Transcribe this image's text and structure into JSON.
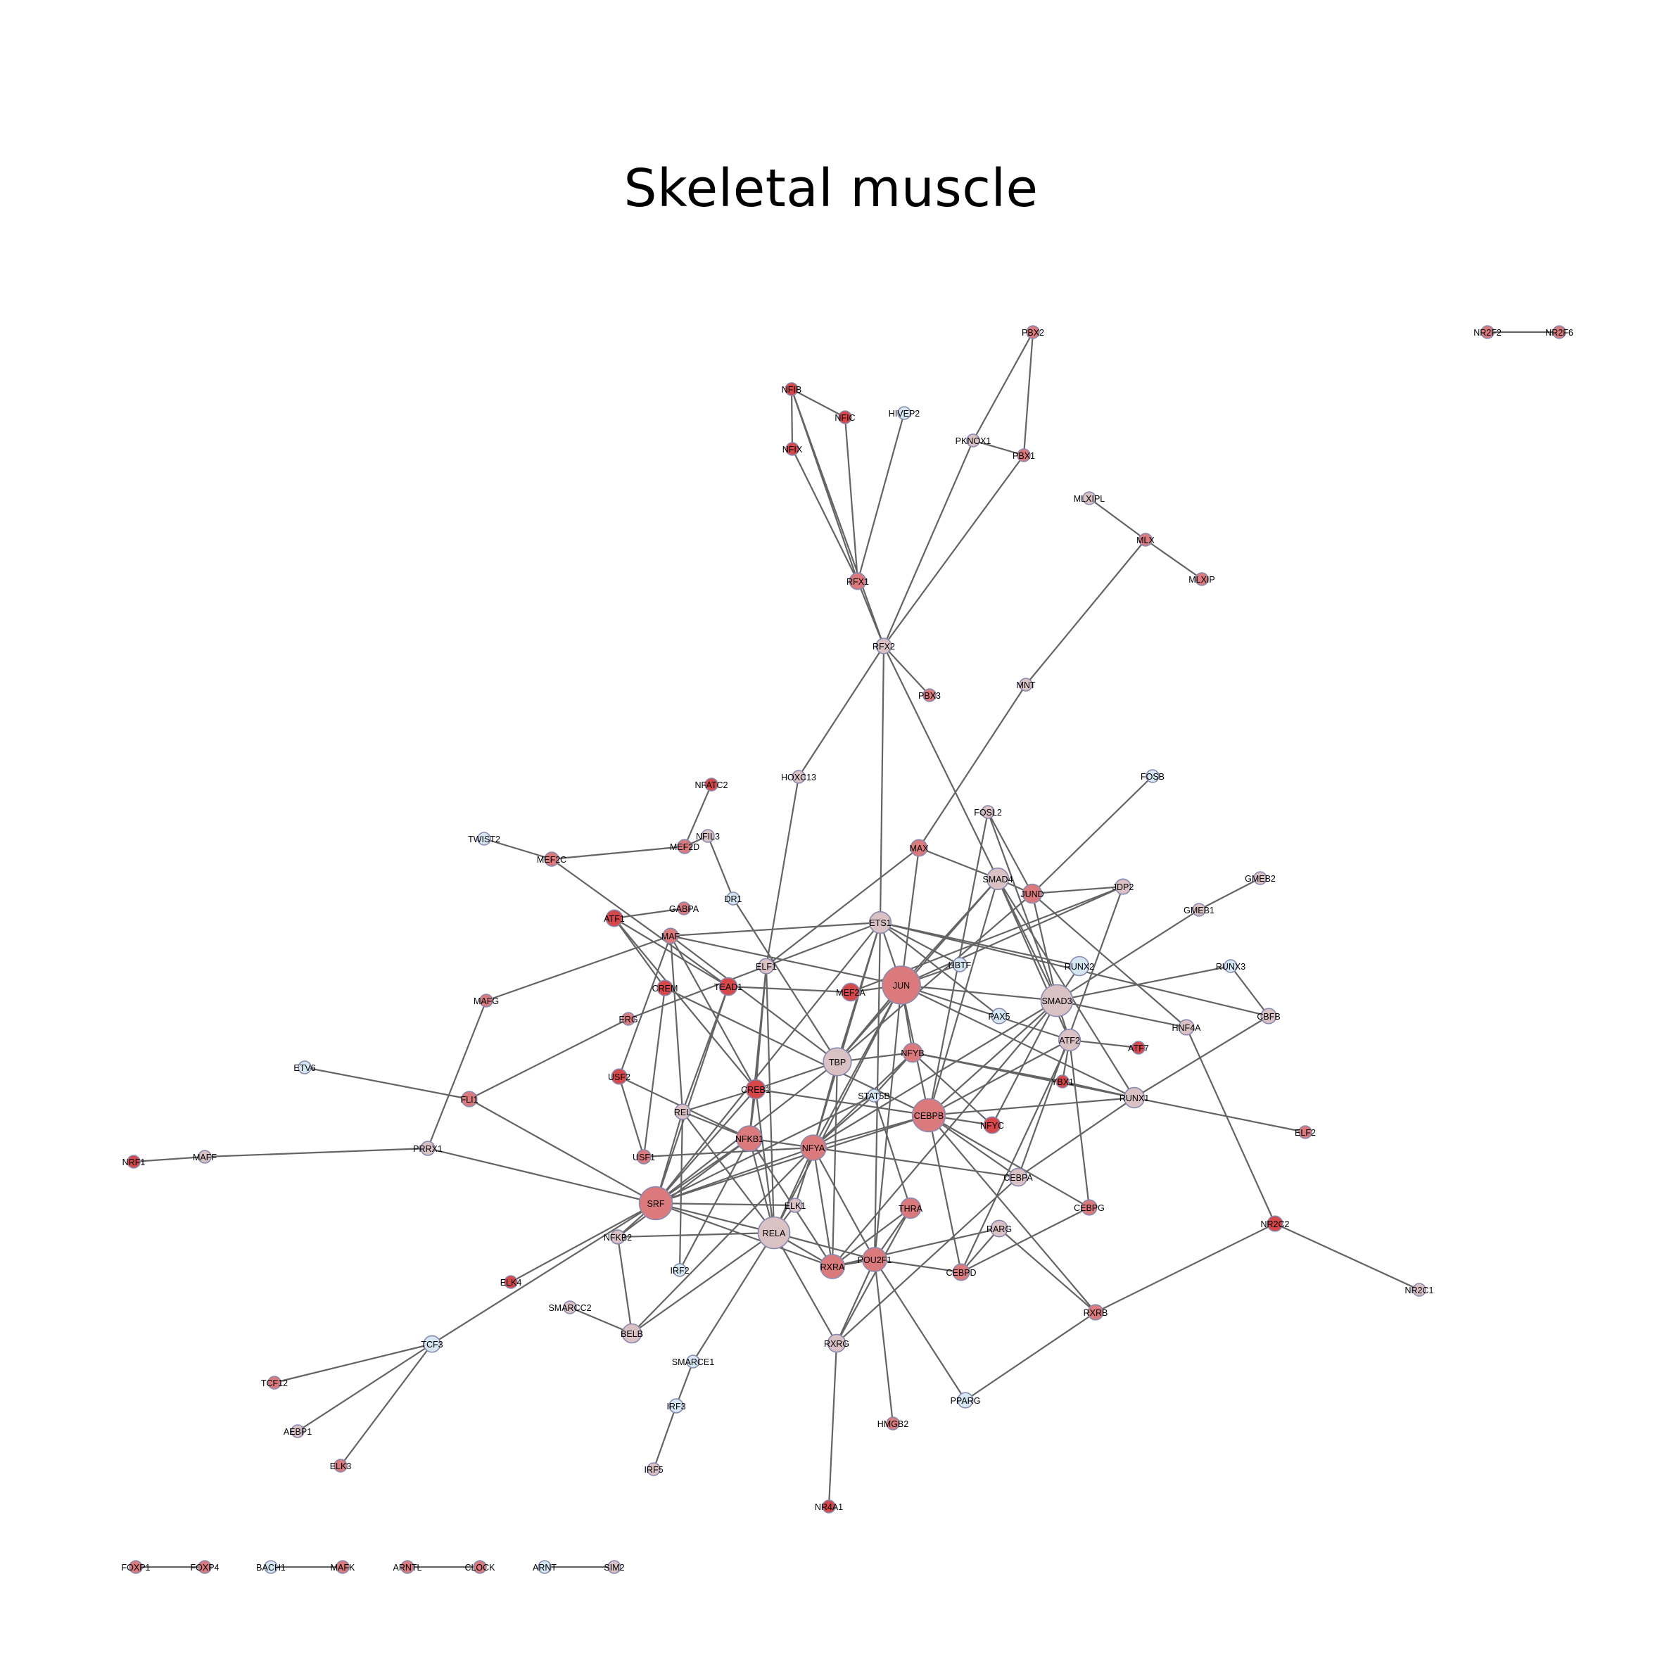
{
  "title": "Skeletal muscle",
  "colors": {
    "edge": "#646464",
    "node_high": "#d6474a",
    "node_mid": "#db7a7d",
    "node_pinkgray": "#d9c1c4",
    "node_light": "#d4e7f2"
  },
  "nodes": [
    {
      "id": "NFIB",
      "c": "high",
      "s": 1
    },
    {
      "id": "NFIC",
      "c": "high",
      "s": 1
    },
    {
      "id": "NFIX",
      "c": "high",
      "s": 1
    },
    {
      "id": "HIVEP2",
      "c": "light",
      "s": 1
    },
    {
      "id": "PBX2",
      "c": "mid",
      "s": 1
    },
    {
      "id": "PKNOX1",
      "c": "pinkgray",
      "s": 1
    },
    {
      "id": "PBX1",
      "c": "mid",
      "s": 1
    },
    {
      "id": "NR2F2",
      "c": "mid",
      "s": 1
    },
    {
      "id": "NR2F6",
      "c": "mid",
      "s": 1
    },
    {
      "id": "MLXIPL",
      "c": "pinkgray",
      "s": 1
    },
    {
      "id": "MLX",
      "c": "mid",
      "s": 1
    },
    {
      "id": "MLXIP",
      "c": "mid",
      "s": 1
    },
    {
      "id": "RFX1",
      "c": "mid",
      "s": 1.3
    },
    {
      "id": "RFX2",
      "c": "pinkgray",
      "s": 1.2
    },
    {
      "id": "PBX3",
      "c": "mid",
      "s": 1
    },
    {
      "id": "MNT",
      "c": "pinkgray",
      "s": 1
    },
    {
      "id": "HOXC13",
      "c": "pinkgray",
      "s": 1
    },
    {
      "id": "FOSB",
      "c": "light",
      "s": 1
    },
    {
      "id": "NFATC2",
      "c": "high",
      "s": 1
    },
    {
      "id": "FOSL2",
      "c": "pinkgray",
      "s": 1
    },
    {
      "id": "TWIST2",
      "c": "light",
      "s": 1
    },
    {
      "id": "MEF2C",
      "c": "mid",
      "s": 1.1
    },
    {
      "id": "MEF2D",
      "c": "mid",
      "s": 1.1
    },
    {
      "id": "NFIL3",
      "c": "pinkgray",
      "s": 1
    },
    {
      "id": "MAX",
      "c": "mid",
      "s": 1.3
    },
    {
      "id": "SMAD4",
      "c": "pinkgray",
      "s": 1.7
    },
    {
      "id": "JUND",
      "c": "mid",
      "s": 1.5
    },
    {
      "id": "JDP2",
      "c": "pinkgray",
      "s": 1.2
    },
    {
      "id": "GMEB2",
      "c": "pinkgray",
      "s": 1
    },
    {
      "id": "DR1",
      "c": "light",
      "s": 1
    },
    {
      "id": "ATF1",
      "c": "high",
      "s": 1.3
    },
    {
      "id": "GABPA",
      "c": "mid",
      "s": 1
    },
    {
      "id": "GMEB1",
      "c": "pinkgray",
      "s": 1
    },
    {
      "id": "ETS1",
      "c": "pinkgray",
      "s": 1.7
    },
    {
      "id": "MAF",
      "c": "mid",
      "s": 1.2
    },
    {
      "id": "ELF1",
      "c": "pinkgray",
      "s": 1.2
    },
    {
      "id": "HBTF",
      "c": "light",
      "s": 1.1
    },
    {
      "id": "RUNX2",
      "c": "light",
      "s": 1.5
    },
    {
      "id": "RUNX3",
      "c": "light",
      "s": 1
    },
    {
      "id": "CREM",
      "c": "high",
      "s": 1.2
    },
    {
      "id": "TEAD1",
      "c": "high",
      "s": 1.4
    },
    {
      "id": "MEF2A",
      "c": "high",
      "s": 1.4
    },
    {
      "id": "JUN",
      "c": "mid",
      "s": 3
    },
    {
      "id": "SMAD3",
      "c": "pinkgray",
      "s": 2.5
    },
    {
      "id": "MAFG",
      "c": "mid",
      "s": 1
    },
    {
      "id": "ERG",
      "c": "mid",
      "s": 1
    },
    {
      "id": "PAX5",
      "c": "light",
      "s": 1.2
    },
    {
      "id": "HNF4A",
      "c": "pinkgray",
      "s": 1.2
    },
    {
      "id": "CBFB",
      "c": "pinkgray",
      "s": 1.2
    },
    {
      "id": "ATF2",
      "c": "pinkgray",
      "s": 1.7
    },
    {
      "id": "ATF7",
      "c": "high",
      "s": 1
    },
    {
      "id": "TBP",
      "c": "pinkgray",
      "s": 2.2
    },
    {
      "id": "NFYB",
      "c": "mid",
      "s": 1.5
    },
    {
      "id": "YBX1",
      "c": "high",
      "s": 1
    },
    {
      "id": "ETV6",
      "c": "light",
      "s": 1
    },
    {
      "id": "FLI1",
      "c": "mid",
      "s": 1.2
    },
    {
      "id": "USF2",
      "c": "high",
      "s": 1.2
    },
    {
      "id": "CREB1",
      "c": "high",
      "s": 1.5
    },
    {
      "id": "STAT5B",
      "c": "light",
      "s": 1
    },
    {
      "id": "RUNX1",
      "c": "pinkgray",
      "s": 1.6
    },
    {
      "id": "CEBPB",
      "c": "mid",
      "s": 2.6
    },
    {
      "id": "REL",
      "c": "pinkgray",
      "s": 1.2
    },
    {
      "id": "NFYC",
      "c": "high",
      "s": 1.3
    },
    {
      "id": "ELF2",
      "c": "mid",
      "s": 1
    },
    {
      "id": "NFKB1",
      "c": "mid",
      "s": 2
    },
    {
      "id": "NFYA",
      "c": "mid",
      "s": 2
    },
    {
      "id": "NRF1",
      "c": "high",
      "s": 1
    },
    {
      "id": "MAFF",
      "c": "pinkgray",
      "s": 1
    },
    {
      "id": "PRRX1",
      "c": "pinkgray",
      "s": 1.1
    },
    {
      "id": "USF1",
      "c": "mid",
      "s": 1.1
    },
    {
      "id": "CEBPA",
      "c": "pinkgray",
      "s": 1.4
    },
    {
      "id": "SRF",
      "c": "mid",
      "s": 2.6
    },
    {
      "id": "ELK1",
      "c": "pinkgray",
      "s": 1.1
    },
    {
      "id": "THRA",
      "c": "mid",
      "s": 1.6
    },
    {
      "id": "CEBPG",
      "c": "mid",
      "s": 1.2
    },
    {
      "id": "NR2C2",
      "c": "high",
      "s": 1.2
    },
    {
      "id": "RARG",
      "c": "pinkgray",
      "s": 1.3
    },
    {
      "id": "NFKB2",
      "c": "pinkgray",
      "s": 1.1
    },
    {
      "id": "RELA",
      "c": "pinkgray",
      "s": 2.5
    },
    {
      "id": "RXRA",
      "c": "mid",
      "s": 1.9
    },
    {
      "id": "POU2F1",
      "c": "mid",
      "s": 1.9
    },
    {
      "id": "IRF2",
      "c": "light",
      "s": 1
    },
    {
      "id": "CEBPD",
      "c": "mid",
      "s": 1.3
    },
    {
      "id": "ELK4",
      "c": "high",
      "s": 1
    },
    {
      "id": "NR2C1",
      "c": "pinkgray",
      "s": 1
    },
    {
      "id": "SMARCC2",
      "c": "pinkgray",
      "s": 1
    },
    {
      "id": "RXRB",
      "c": "mid",
      "s": 1.2
    },
    {
      "id": "BELB",
      "c": "pinkgray",
      "s": 1.5
    },
    {
      "id": "RXRG",
      "c": "pinkgray",
      "s": 1.4
    },
    {
      "id": "TCF3",
      "c": "light",
      "s": 1.3
    },
    {
      "id": "SMARCE1",
      "c": "light",
      "s": 1
    },
    {
      "id": "TCF12",
      "c": "mid",
      "s": 1
    },
    {
      "id": "IRF3",
      "c": "light",
      "s": 1.1
    },
    {
      "id": "PPARG",
      "c": "light",
      "s": 1.2
    },
    {
      "id": "HMGB2",
      "c": "mid",
      "s": 1
    },
    {
      "id": "AEBP1",
      "c": "pinkgray",
      "s": 1
    },
    {
      "id": "ELK3",
      "c": "mid",
      "s": 1
    },
    {
      "id": "IRF5",
      "c": "pinkgray",
      "s": 1
    },
    {
      "id": "NR4A1",
      "c": "high",
      "s": 1
    },
    {
      "id": "FOXP1",
      "c": "mid",
      "s": 1
    },
    {
      "id": "FOXP4",
      "c": "mid",
      "s": 1
    },
    {
      "id": "BACH1",
      "c": "light",
      "s": 1
    },
    {
      "id": "MAFK",
      "c": "mid",
      "s": 1
    },
    {
      "id": "ARNTL",
      "c": "mid",
      "s": 1
    },
    {
      "id": "CLOCK",
      "c": "mid",
      "s": 1
    },
    {
      "id": "ARNT",
      "c": "light",
      "s": 1
    },
    {
      "id": "SIM2",
      "c": "pinkgray",
      "s": 1
    }
  ],
  "edges": [
    [
      "NFIB",
      "NFIC"
    ],
    [
      "NFIB",
      "NFIX"
    ],
    [
      "NFIB",
      "RFX1"
    ],
    [
      "NFIB",
      "RFX2"
    ],
    [
      "NFIX",
      "RFX1"
    ],
    [
      "NFIC",
      "RFX1"
    ],
    [
      "HIVEP2",
      "RFX1"
    ],
    [
      "PBX2",
      "PKNOX1"
    ],
    [
      "PBX2",
      "PBX1"
    ],
    [
      "PKNOX1",
      "PBX1"
    ],
    [
      "PKNOX1",
      "RFX2"
    ],
    [
      "PBX1",
      "RFX2"
    ],
    [
      "NR2F2",
      "NR2F6"
    ],
    [
      "MLXIPL",
      "MLX"
    ],
    [
      "MLX",
      "MLXIP"
    ],
    [
      "MLX",
      "MNT"
    ],
    [
      "MNT",
      "MAX"
    ],
    [
      "RFX1",
      "RFX2"
    ],
    [
      "RFX2",
      "PBX3"
    ],
    [
      "RFX2",
      "HOXC13"
    ],
    [
      "RFX2",
      "ETS1"
    ],
    [
      "RFX2",
      "SMAD4"
    ],
    [
      "HOXC13",
      "ELF1"
    ],
    [
      "FOSB",
      "JUND"
    ],
    [
      "NFATC2",
      "MEF2D"
    ],
    [
      "TWIST2",
      "MEF2C"
    ],
    [
      "MEF2C",
      "MEF2D"
    ],
    [
      "MEF2C",
      "TEAD1"
    ],
    [
      "MEF2D",
      "NFIL3"
    ],
    [
      "NFIL3",
      "DR1"
    ],
    [
      "DR1",
      "TBP"
    ],
    [
      "FOSL2",
      "SMAD3"
    ],
    [
      "FOSL2",
      "JUND"
    ],
    [
      "FOSL2",
      "CEBPB"
    ],
    [
      "GMEB2",
      "GMEB1"
    ],
    [
      "GMEB1",
      "SMAD3"
    ],
    [
      "MAX",
      "JUN"
    ],
    [
      "MAX",
      "SMAD4"
    ],
    [
      "MAX",
      "ELF1"
    ],
    [
      "SMAD4",
      "JUND"
    ],
    [
      "SMAD4",
      "SMAD3"
    ],
    [
      "SMAD4",
      "JUN"
    ],
    [
      "SMAD4",
      "CEBPB"
    ],
    [
      "SMAD4",
      "ATF2"
    ],
    [
      "SMAD4",
      "RUNX1"
    ],
    [
      "SMAD4",
      "TBP"
    ],
    [
      "JUND",
      "JDP2"
    ],
    [
      "JUND",
      "SMAD3"
    ],
    [
      "JUND",
      "HNF4A"
    ],
    [
      "JUND",
      "TBP"
    ],
    [
      "JDP2",
      "CEBPA"
    ],
    [
      "JDP2",
      "JUN"
    ],
    [
      "JDP2",
      "MEF2A"
    ],
    [
      "ATF1",
      "GABPA"
    ],
    [
      "ATF1",
      "TEAD1"
    ],
    [
      "ATF1",
      "CREB1"
    ],
    [
      "ATF1",
      "CREM"
    ],
    [
      "MAF",
      "ETS1"
    ],
    [
      "MAF",
      "MAFG"
    ],
    [
      "MAF",
      "JUN"
    ],
    [
      "MAF",
      "CREB1"
    ],
    [
      "MAF",
      "REL"
    ],
    [
      "MAF",
      "TBP"
    ],
    [
      "ETS1",
      "JUN"
    ],
    [
      "ETS1",
      "HBTF"
    ],
    [
      "ETS1",
      "RUNX2"
    ],
    [
      "ETS1",
      "ELF1"
    ],
    [
      "ETS1",
      "NFYA"
    ],
    [
      "ETS1",
      "TBP"
    ],
    [
      "ETS1",
      "CBFB"
    ],
    [
      "ETS1",
      "POU2F1"
    ],
    [
      "ETS1",
      "PAX5"
    ],
    [
      "ETS1",
      "SRF"
    ],
    [
      "ELF1",
      "CREB1"
    ],
    [
      "ELF1",
      "NFKB1"
    ],
    [
      "ELF1",
      "ERG"
    ],
    [
      "ELF1",
      "RELA"
    ],
    [
      "HBTF",
      "JUN"
    ],
    [
      "RUNX2",
      "SMAD3"
    ],
    [
      "RUNX3",
      "SMAD3"
    ],
    [
      "RUNX3",
      "CBFB"
    ],
    [
      "CBFB",
      "RUNX1"
    ],
    [
      "CREM",
      "CEBPB"
    ],
    [
      "CREM",
      "USF1"
    ],
    [
      "TEAD1",
      "MEF2A"
    ],
    [
      "TEAD1",
      "SRF"
    ],
    [
      "TEAD1",
      "REL"
    ],
    [
      "JUN",
      "MEF2A"
    ],
    [
      "JUN",
      "NFYB"
    ],
    [
      "JUN",
      "TBP"
    ],
    [
      "JUN",
      "SMAD3"
    ],
    [
      "JUN",
      "NFYA"
    ],
    [
      "JUN",
      "RUNX1"
    ],
    [
      "JUN",
      "CEBPB"
    ],
    [
      "JUN",
      "ATF2"
    ],
    [
      "JUN",
      "RELA"
    ],
    [
      "JUN",
      "POU2F1"
    ],
    [
      "SMAD3",
      "CEBPB"
    ],
    [
      "SMAD3",
      "ATF2"
    ],
    [
      "SMAD3",
      "HNF4A"
    ],
    [
      "SMAD3",
      "NFYA"
    ],
    [
      "SMAD3",
      "NFYC"
    ],
    [
      "SMAD3",
      "RXRA"
    ],
    [
      "MAFG",
      "PRRX1"
    ],
    [
      "ERG",
      "FLI1"
    ],
    [
      "HNF4A",
      "NR2C2"
    ],
    [
      "ATF2",
      "ATF7"
    ],
    [
      "ATF2",
      "CEBPG"
    ],
    [
      "ATF2",
      "CEBPB"
    ],
    [
      "ATF2",
      "YBX1"
    ],
    [
      "ATF2",
      "CEBPD"
    ],
    [
      "TBP",
      "NFYB"
    ],
    [
      "TBP",
      "NFYA"
    ],
    [
      "TBP",
      "CREB1"
    ],
    [
      "TBP",
      "SRF"
    ],
    [
      "TBP",
      "RXRA"
    ],
    [
      "NFYB",
      "NFYA"
    ],
    [
      "NFYB",
      "YBX1"
    ],
    [
      "NFYB",
      "NFYC"
    ],
    [
      "NFYB",
      "STAT5B"
    ],
    [
      "NFYB",
      "RUNX1"
    ],
    [
      "ETV6",
      "FLI1"
    ],
    [
      "FLI1",
      "SRF"
    ],
    [
      "USF2",
      "USF1"
    ],
    [
      "USF2",
      "NFKB1"
    ],
    [
      "USF2",
      "MAF"
    ],
    [
      "CREB1",
      "CEBPB"
    ],
    [
      "CREB1",
      "NFKB1"
    ],
    [
      "CREB1",
      "SRF"
    ],
    [
      "CREB1",
      "REL"
    ],
    [
      "CREB1",
      "RELA"
    ],
    [
      "STAT5B",
      "SRF"
    ],
    [
      "STAT5B",
      "NFYA"
    ],
    [
      "STAT5B",
      "THRA"
    ],
    [
      "RUNX1",
      "ELF2"
    ],
    [
      "RUNX1",
      "CEBPB"
    ],
    [
      "RUNX1",
      "CEBPA"
    ],
    [
      "RUNX1",
      "YBX1"
    ],
    [
      "CEBPB",
      "NFYA"
    ],
    [
      "CEBPB",
      "CEBPA"
    ],
    [
      "CEBPB",
      "CEBPG"
    ],
    [
      "CEBPB",
      "CEBPD"
    ],
    [
      "CEBPB",
      "SRF"
    ],
    [
      "CEBPB",
      "NFYC"
    ],
    [
      "CEBPB",
      "RXRB"
    ],
    [
      "REL",
      "NFKB1"
    ],
    [
      "REL",
      "RELA"
    ],
    [
      "REL",
      "SRF"
    ],
    [
      "REL",
      "IRF2"
    ],
    [
      "NFKB1",
      "NFYA"
    ],
    [
      "NFKB1",
      "SRF"
    ],
    [
      "NFKB1",
      "RELA"
    ],
    [
      "NFKB1",
      "NFKB2"
    ],
    [
      "NFKB1",
      "IRF2"
    ],
    [
      "NFKB1",
      "RXRA"
    ],
    [
      "NFYA",
      "USF1"
    ],
    [
      "NFYA",
      "SRF"
    ],
    [
      "NFYA",
      "RELA"
    ],
    [
      "NFYA",
      "RXRA"
    ],
    [
      "NFYA",
      "POU2F1"
    ],
    [
      "NFYA",
      "CEBPA"
    ],
    [
      "NFYA",
      "ELK1"
    ],
    [
      "NRF1",
      "MAFF"
    ],
    [
      "MAFF",
      "PRRX1"
    ],
    [
      "PRRX1",
      "SRF"
    ],
    [
      "SRF",
      "RELA"
    ],
    [
      "SRF",
      "ELK1"
    ],
    [
      "SRF",
      "NFKB2"
    ],
    [
      "SRF",
      "ELK4"
    ],
    [
      "SRF",
      "TCF3"
    ],
    [
      "SRF",
      "RXRA"
    ],
    [
      "ELK1",
      "RELA"
    ],
    [
      "THRA",
      "RXRA"
    ],
    [
      "THRA",
      "POU2F1"
    ],
    [
      "THRA",
      "RXRG"
    ],
    [
      "CEBPG",
      "CEBPD"
    ],
    [
      "NR2C2",
      "NR2C1"
    ],
    [
      "NR2C2",
      "RXRB"
    ],
    [
      "RARG",
      "RXRA"
    ],
    [
      "RARG",
      "RXRB"
    ],
    [
      "RARG",
      "CEBPD"
    ],
    [
      "NFKB2",
      "BELB"
    ],
    [
      "NFKB2",
      "RELA"
    ],
    [
      "RELA",
      "RXRA"
    ],
    [
      "RELA",
      "POU2F1"
    ],
    [
      "RELA",
      "BELB"
    ],
    [
      "RELA",
      "SMARCE1"
    ],
    [
      "RELA",
      "RXRG"
    ],
    [
      "POU2F1",
      "RXRA"
    ],
    [
      "POU2F1",
      "HMGB2"
    ],
    [
      "POU2F1",
      "PPARG"
    ],
    [
      "POU2F1",
      "RXRG"
    ],
    [
      "POU2F1",
      "CEBPD"
    ],
    [
      "SMARCC2",
      "BELB"
    ],
    [
      "BELB",
      "NFYA"
    ],
    [
      "RXRB",
      "PPARG"
    ],
    [
      "RXRG",
      "NR4A1"
    ],
    [
      "RXRG",
      "CEBPA"
    ],
    [
      "TCF3",
      "TCF12"
    ],
    [
      "TCF3",
      "AEBP1"
    ],
    [
      "TCF3",
      "ELK3"
    ],
    [
      "SMARCE1",
      "IRF3"
    ],
    [
      "IRF3",
      "IRF5"
    ],
    [
      "FOXP1",
      "FOXP4"
    ],
    [
      "BACH1",
      "MAFK"
    ],
    [
      "ARNTL",
      "CLOCK"
    ],
    [
      "ARNT",
      "SIM2"
    ]
  ]
}
